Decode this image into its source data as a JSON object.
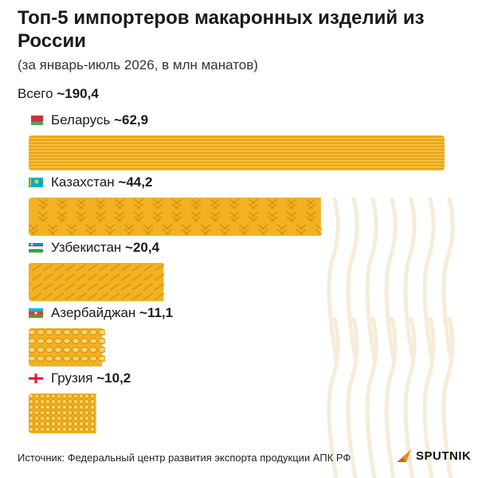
{
  "header": {
    "title": "Топ-5 импортеров макаронных изделий из России",
    "subtitle": "(за январь-июль 2026, в млн манатов)",
    "total_label": "Всего",
    "total_value": "~190,4"
  },
  "chart_data": {
    "type": "bar",
    "orientation": "horizontal",
    "categories": [
      "Беларусь",
      "Казахстан",
      "Узбекистан",
      "Азербайджан",
      "Грузия"
    ],
    "values": [
      62.9,
      44.2,
      20.4,
      11.1,
      10.2
    ],
    "value_labels": [
      "~62,9",
      "~44,2",
      "~20,4",
      "~11,1",
      "~10,2"
    ],
    "pasta": [
      "spaghetti",
      "fusilli",
      "penne",
      "rigatoni",
      "ditalini"
    ],
    "xlim": [
      0,
      62.9
    ],
    "colors": {
      "pasta_base": "#f2b223",
      "pasta_dark": "#d9900f",
      "pasta_light": "#ffd466",
      "ghost": "#f6ecd9"
    }
  },
  "footer": {
    "source": "Источник: Федеральный центр развития экспорта продукции АПК РФ",
    "brand": "SPUTNIK",
    "brand_color": "#f28a1a"
  }
}
